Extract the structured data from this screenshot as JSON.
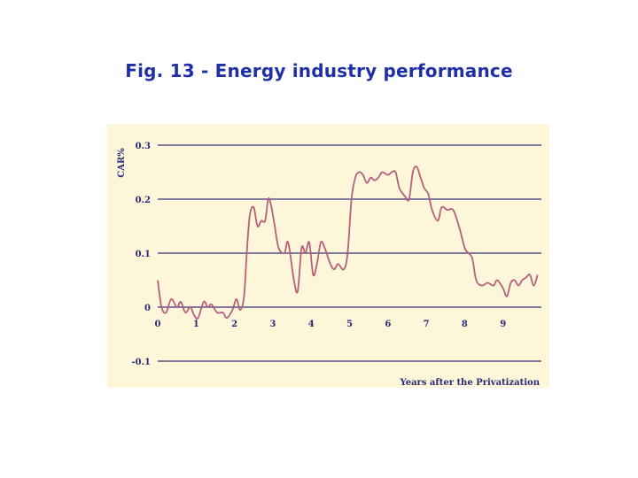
{
  "slide": {
    "title": "Fig. 13 - Energy industry performance"
  },
  "chart_data": {
    "type": "line",
    "title": "",
    "xlabel": "Years after the Privatization",
    "ylabel": "CAR%",
    "xlim": [
      0,
      9.9
    ],
    "ylim": [
      -0.1,
      0.3
    ],
    "x_ticks": [
      "0",
      "1",
      "2",
      "3",
      "4",
      "5",
      "6",
      "7",
      "8",
      "9"
    ],
    "y_ticks": [
      "0.3",
      "0.2",
      "0.1",
      "0",
      "-0.1"
    ],
    "grid": "horizontal",
    "colors": {
      "line": "#b5607a",
      "grid": "#2f2f7a",
      "panel": "#fdf6d9"
    },
    "series": [
      {
        "values": [
          [
            0.0,
            0.05
          ],
          [
            0.1,
            0.0
          ],
          [
            0.22,
            -0.01
          ],
          [
            0.35,
            0.015
          ],
          [
            0.5,
            0.0
          ],
          [
            0.6,
            0.01
          ],
          [
            0.72,
            -0.01
          ],
          [
            0.85,
            0.0
          ],
          [
            0.95,
            -0.015
          ],
          [
            1.05,
            -0.02
          ],
          [
            1.2,
            0.01
          ],
          [
            1.3,
            0.0
          ],
          [
            1.4,
            0.005
          ],
          [
            1.55,
            -0.01
          ],
          [
            1.7,
            -0.01
          ],
          [
            1.8,
            -0.02
          ],
          [
            1.95,
            -0.005
          ],
          [
            2.05,
            0.015
          ],
          [
            2.15,
            -0.005
          ],
          [
            2.25,
            0.02
          ],
          [
            2.32,
            0.1
          ],
          [
            2.4,
            0.17
          ],
          [
            2.5,
            0.185
          ],
          [
            2.6,
            0.15
          ],
          [
            2.7,
            0.16
          ],
          [
            2.8,
            0.16
          ],
          [
            2.88,
            0.2
          ],
          [
            2.95,
            0.19
          ],
          [
            3.05,
            0.15
          ],
          [
            3.15,
            0.11
          ],
          [
            3.3,
            0.1
          ],
          [
            3.4,
            0.12
          ],
          [
            3.55,
            0.05
          ],
          [
            3.65,
            0.03
          ],
          [
            3.75,
            0.11
          ],
          [
            3.85,
            0.1
          ],
          [
            3.95,
            0.12
          ],
          [
            4.05,
            0.06
          ],
          [
            4.15,
            0.08
          ],
          [
            4.25,
            0.12
          ],
          [
            4.35,
            0.11
          ],
          [
            4.5,
            0.08
          ],
          [
            4.6,
            0.07
          ],
          [
            4.7,
            0.08
          ],
          [
            4.85,
            0.07
          ],
          [
            4.95,
            0.1
          ],
          [
            5.05,
            0.2
          ],
          [
            5.15,
            0.24
          ],
          [
            5.25,
            0.25
          ],
          [
            5.35,
            0.245
          ],
          [
            5.45,
            0.23
          ],
          [
            5.55,
            0.24
          ],
          [
            5.65,
            0.235
          ],
          [
            5.75,
            0.24
          ],
          [
            5.85,
            0.25
          ],
          [
            6.0,
            0.245
          ],
          [
            6.1,
            0.25
          ],
          [
            6.2,
            0.25
          ],
          [
            6.3,
            0.22
          ],
          [
            6.45,
            0.205
          ],
          [
            6.55,
            0.2
          ],
          [
            6.65,
            0.25
          ],
          [
            6.75,
            0.26
          ],
          [
            6.85,
            0.24
          ],
          [
            6.95,
            0.22
          ],
          [
            7.05,
            0.21
          ],
          [
            7.15,
            0.18
          ],
          [
            7.3,
            0.16
          ],
          [
            7.4,
            0.185
          ],
          [
            7.55,
            0.18
          ],
          [
            7.7,
            0.18
          ],
          [
            7.85,
            0.15
          ],
          [
            8.0,
            0.11
          ],
          [
            8.1,
            0.1
          ],
          [
            8.2,
            0.09
          ],
          [
            8.3,
            0.05
          ],
          [
            8.45,
            0.04
          ],
          [
            8.6,
            0.045
          ],
          [
            8.75,
            0.04
          ],
          [
            8.85,
            0.05
          ],
          [
            9.0,
            0.035
          ],
          [
            9.1,
            0.02
          ],
          [
            9.2,
            0.045
          ],
          [
            9.3,
            0.05
          ],
          [
            9.4,
            0.04
          ],
          [
            9.5,
            0.05
          ],
          [
            9.6,
            0.055
          ],
          [
            9.7,
            0.06
          ],
          [
            9.8,
            0.04
          ],
          [
            9.9,
            0.06
          ]
        ]
      }
    ]
  }
}
